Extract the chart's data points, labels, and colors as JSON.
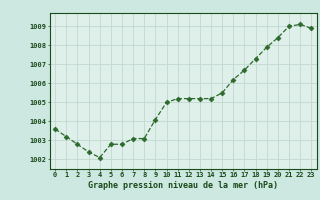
{
  "hours": [
    0,
    1,
    2,
    3,
    4,
    5,
    6,
    7,
    8,
    9,
    10,
    11,
    12,
    13,
    14,
    15,
    16,
    17,
    18,
    19,
    20,
    21,
    22,
    23
  ],
  "pressure": [
    1003.6,
    1003.2,
    1002.8,
    1002.4,
    1002.1,
    1002.8,
    1002.8,
    1003.1,
    1003.1,
    1004.1,
    1005.0,
    1005.2,
    1005.2,
    1005.2,
    1005.2,
    1005.5,
    1006.2,
    1006.7,
    1007.3,
    1007.9,
    1008.4,
    1009.0,
    1009.1,
    1008.9
  ],
  "line_color": "#2d6a2d",
  "marker": "D",
  "marker_size": 2.5,
  "bg_color": "#cce8e0",
  "plot_bg_color": "#dff0ea",
  "grid_color": "#c0d8d0",
  "xlabel": "Graphe pression niveau de la mer (hPa)",
  "xlabel_color": "#1a4a1a",
  "tick_color": "#1a4a1a",
  "ylim": [
    1001.5,
    1009.7
  ],
  "yticks": [
    1002,
    1003,
    1004,
    1005,
    1006,
    1007,
    1008,
    1009
  ],
  "xlim": [
    -0.5,
    23.5
  ],
  "xticks": [
    0,
    1,
    2,
    3,
    4,
    5,
    6,
    7,
    8,
    9,
    10,
    11,
    12,
    13,
    14,
    15,
    16,
    17,
    18,
    19,
    20,
    21,
    22,
    23
  ]
}
